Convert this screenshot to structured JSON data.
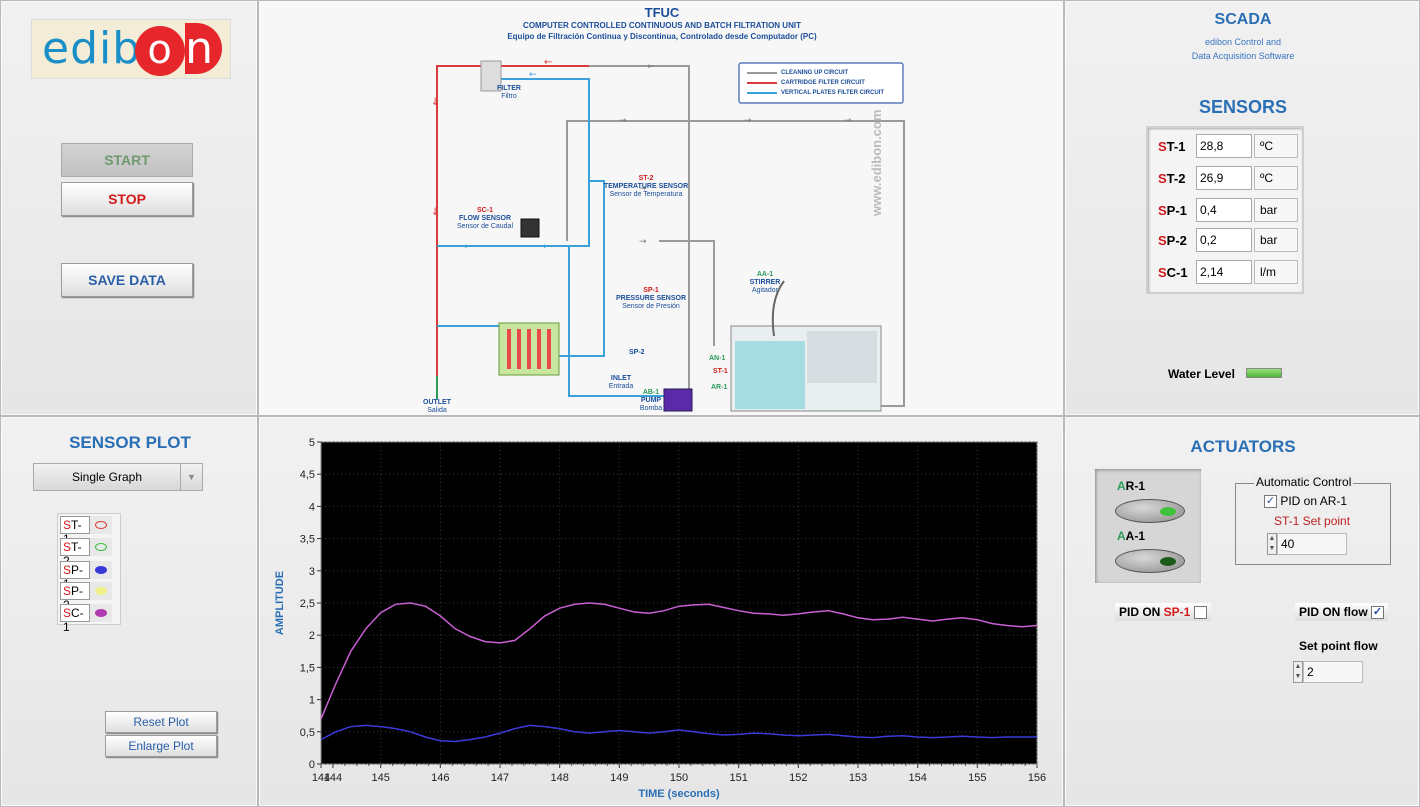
{
  "logo": {
    "text_left": "edib",
    "text_o": "o",
    "text_right": "n"
  },
  "controls": {
    "start_label": "START",
    "stop_label": "STOP",
    "save_label": "SAVE DATA"
  },
  "diagram": {
    "title": "TFUC",
    "subtitle_en": "COMPUTER CONTROLLED CONTINUOUS AND BATCH FILTRATION UNIT",
    "subtitle_es": "Equipo de Filtración Continua y Discontinua, Controlado desde Computador (PC)",
    "legend": [
      "CLEANING UP CIRCUIT",
      "CARTRIDGE FILTER CIRCUIT",
      "VERTICAL PLATES FILTER CIRCUIT"
    ],
    "legend_colors": [
      "#9a9a9a",
      "#d93a3a",
      "#3aa0d9"
    ],
    "watermark": "www.edibon.com",
    "filter": {
      "en": "FILTER",
      "es": "Filtro"
    },
    "st2": {
      "tag": "ST-2",
      "en": "TEMPERATURE SENSOR",
      "es": "Sensor de Temperatura"
    },
    "sc1": {
      "tag": "SC-1",
      "en": "FLOW SENSOR",
      "es": "Sensor de Caudal"
    },
    "sp1": {
      "tag": "SP-1",
      "en": "PRESSURE SENSOR",
      "es": "Sensor de Presión"
    },
    "aa1": {
      "tag": "AA-1",
      "en": "STIRRER",
      "es": "Agitador"
    },
    "sp2": {
      "tag": "SP-2"
    },
    "an1": {
      "tag": "AN-1"
    },
    "st1": {
      "tag": "ST-1"
    },
    "ar1_small": {
      "tag": "AR-1"
    },
    "ab1": {
      "tag": "AB-1",
      "en": "PUMP",
      "es": "Bomba"
    },
    "inlet": {
      "en": "INLET",
      "es": "Entrada"
    },
    "outlet": {
      "en": "OUTLET",
      "es": "Salida"
    }
  },
  "scada": {
    "title": "SCADA",
    "line1": "edibon Control and",
    "line2": "Data Acquisition Software"
  },
  "sensors": {
    "title": "SENSORS",
    "rows": [
      {
        "p": "S",
        "tag": "T-1",
        "value": "28,8",
        "unit": "ºC"
      },
      {
        "p": "S",
        "tag": "T-2",
        "value": "26,9",
        "unit": "ºC"
      },
      {
        "p": "S",
        "tag": "P-1",
        "value": "0,4",
        "unit": "bar"
      },
      {
        "p": "S",
        "tag": "P-2",
        "value": "0,2",
        "unit": "bar"
      },
      {
        "p": "S",
        "tag": "C-1",
        "value": "2,14",
        "unit": "l/m"
      }
    ],
    "water_level_label": "Water Level"
  },
  "sensor_plot": {
    "title": "SENSOR PLOT",
    "mode": "Single Graph",
    "legend": [
      {
        "p": "S",
        "tag": "T-1",
        "color": "#e23b3b"
      },
      {
        "p": "S",
        "tag": "T-2",
        "color": "#3bbf3b"
      },
      {
        "p": "S",
        "tag": "P-1",
        "color": "#3a3ad8"
      },
      {
        "p": "S",
        "tag": "P-2",
        "color": "#e6e63a"
      },
      {
        "p": "S",
        "tag": "C-1",
        "color": "#b03ab0"
      }
    ],
    "reset_label": "Reset Plot",
    "enlarge_label": "Enlarge Plot"
  },
  "actuators": {
    "title": "ACTUATORS",
    "ar1": {
      "p": "A",
      "tag": "R-1"
    },
    "aa1": {
      "p": "A",
      "tag": "A-1"
    },
    "auto_title": "Automatic Control",
    "pid_ar1_label": "PID on AR-1",
    "st1_setpoint_label": "ST-1 Set point",
    "st1_setpoint_value": "40",
    "pid_sp1_label_a": "PID ON ",
    "pid_sp1_label_b": "SP-1",
    "pid_flow_label": "PID ON flow",
    "setpoint_flow_label": "Set point flow",
    "setpoint_flow_value": "2"
  },
  "chart_data": {
    "type": "line",
    "title": "",
    "xlabel": "TIME  (seconds)",
    "ylabel": "AMPLITUDE",
    "xlim": [
      144,
      156
    ],
    "ylim": [
      0,
      5
    ],
    "x_ticks": [
      "144",
      "144",
      "145",
      "146",
      "147",
      "148",
      "149",
      "150",
      "151",
      "152",
      "153",
      "154",
      "155",
      "156"
    ],
    "y_ticks": [
      "0",
      "0,5",
      "1",
      "1,5",
      "2",
      "2,5",
      "3",
      "3,5",
      "4",
      "4,5",
      "5"
    ],
    "grid": true,
    "background": "#000000",
    "series": [
      {
        "name": "SC-1",
        "color": "#c95fd3",
        "x": [
          144,
          144.25,
          144.5,
          144.75,
          145,
          145.25,
          145.5,
          145.75,
          146,
          146.25,
          146.5,
          146.75,
          147,
          147.25,
          147.5,
          147.75,
          148,
          148.25,
          148.5,
          148.75,
          149,
          149.25,
          149.5,
          149.75,
          150,
          150.25,
          150.5,
          150.75,
          151,
          151.25,
          151.5,
          151.75,
          152,
          152.25,
          152.5,
          152.75,
          153,
          153.25,
          153.5,
          153.75,
          154,
          154.25,
          154.5,
          154.75,
          155,
          155.25,
          155.5,
          155.75,
          156
        ],
        "y": [
          0.7,
          1.25,
          1.75,
          2.1,
          2.35,
          2.48,
          2.5,
          2.45,
          2.3,
          2.1,
          1.98,
          1.9,
          1.88,
          1.92,
          2.1,
          2.3,
          2.42,
          2.48,
          2.5,
          2.48,
          2.42,
          2.36,
          2.34,
          2.38,
          2.45,
          2.47,
          2.48,
          2.43,
          2.38,
          2.34,
          2.33,
          2.31,
          2.33,
          2.36,
          2.38,
          2.33,
          2.27,
          2.24,
          2.25,
          2.28,
          2.25,
          2.22,
          2.25,
          2.27,
          2.24,
          2.18,
          2.15,
          2.13,
          2.15
        ]
      },
      {
        "name": "SP-1",
        "color": "#3b3bd9",
        "x": [
          144,
          144.25,
          144.5,
          144.75,
          145,
          145.25,
          145.5,
          145.75,
          146,
          146.25,
          146.5,
          146.75,
          147,
          147.25,
          147.5,
          147.75,
          148,
          148.25,
          148.5,
          148.75,
          149,
          149.25,
          149.5,
          149.75,
          150,
          150.25,
          150.5,
          150.75,
          151,
          151.25,
          151.5,
          151.75,
          152,
          152.25,
          152.5,
          152.75,
          153,
          153.25,
          153.5,
          153.75,
          154,
          154.25,
          154.5,
          154.75,
          155,
          155.25,
          155.5,
          155.75,
          156
        ],
        "y": [
          0.38,
          0.5,
          0.58,
          0.6,
          0.58,
          0.55,
          0.5,
          0.42,
          0.36,
          0.35,
          0.38,
          0.42,
          0.48,
          0.55,
          0.6,
          0.58,
          0.55,
          0.5,
          0.48,
          0.5,
          0.52,
          0.5,
          0.48,
          0.5,
          0.53,
          0.5,
          0.47,
          0.45,
          0.46,
          0.48,
          0.47,
          0.45,
          0.44,
          0.45,
          0.46,
          0.44,
          0.42,
          0.41,
          0.43,
          0.44,
          0.42,
          0.41,
          0.42,
          0.43,
          0.42,
          0.41,
          0.42,
          0.42,
          0.42
        ]
      }
    ]
  }
}
